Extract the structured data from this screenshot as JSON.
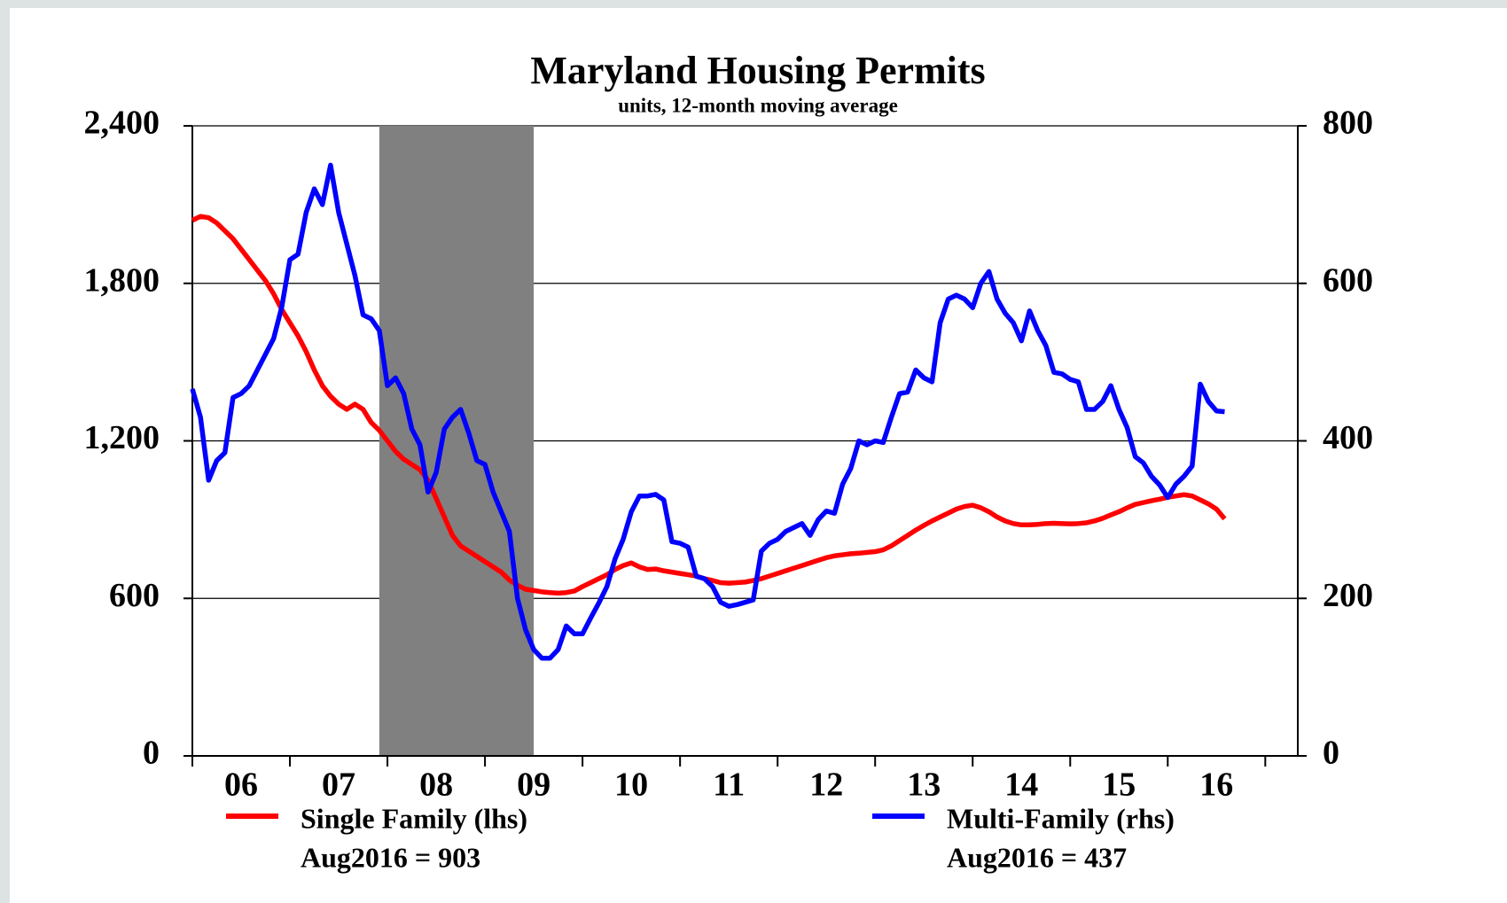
{
  "chart_data": {
    "type": "line",
    "title": "Maryland Housing Permits",
    "subtitle": "units, 12-month moving average",
    "categories": [
      null,
      null,
      null,
      null,
      null,
      null,
      "06",
      null,
      null,
      null,
      null,
      null,
      null,
      null,
      null,
      null,
      null,
      null,
      "07",
      null,
      null,
      null,
      null,
      null,
      null,
      null,
      null,
      null,
      null,
      null,
      "08",
      null,
      null,
      null,
      null,
      null,
      null,
      null,
      null,
      null,
      null,
      null,
      "09",
      null,
      null,
      null,
      null,
      null,
      null,
      null,
      null,
      null,
      null,
      null,
      "10",
      null,
      null,
      null,
      null,
      null,
      null,
      null,
      null,
      null,
      null,
      null,
      "11",
      null,
      null,
      null,
      null,
      null,
      null,
      null,
      null,
      null,
      null,
      null,
      "12",
      null,
      null,
      null,
      null,
      null,
      null,
      null,
      null,
      null,
      null,
      null,
      "13",
      null,
      null,
      null,
      null,
      null,
      null,
      null,
      null,
      null,
      null,
      null,
      "14",
      null,
      null,
      null,
      null,
      null,
      null,
      null,
      null,
      null,
      null,
      null,
      "15",
      null,
      null,
      null,
      null,
      null,
      null,
      null,
      null,
      null,
      null,
      null,
      "16",
      null,
      null,
      null,
      null,
      null,
      null,
      null,
      null,
      null
    ],
    "series": [
      {
        "name": "Single Family (lhs)",
        "annotation": "Aug2016  = 903",
        "color": "#ff0000",
        "axis": "y",
        "values": [
          2040,
          2055,
          2050,
          2030,
          2000,
          1970,
          1930,
          1890,
          1850,
          1810,
          1760,
          1700,
          1650,
          1600,
          1540,
          1470,
          1410,
          1370,
          1340,
          1320,
          1340,
          1320,
          1270,
          1240,
          1200,
          1160,
          1130,
          1110,
          1090,
          1050,
          980,
          910,
          840,
          800,
          780,
          760,
          740,
          720,
          700,
          670,
          650,
          635,
          630,
          625,
          622,
          620,
          622,
          628,
          645,
          660,
          675,
          690,
          710,
          725,
          735,
          720,
          710,
          712,
          705,
          700,
          695,
          690,
          685,
          675,
          668,
          660,
          658,
          660,
          662,
          668,
          675,
          685,
          695,
          705,
          715,
          725,
          735,
          745,
          755,
          762,
          766,
          770,
          772,
          775,
          778,
          785,
          800,
          820,
          840,
          860,
          878,
          895,
          910,
          925,
          940,
          950,
          955,
          945,
          930,
          910,
          895,
          885,
          880,
          880,
          882,
          885,
          886,
          885,
          884,
          885,
          888,
          895,
          905,
          918,
          930,
          945,
          958,
          965,
          972,
          978,
          985,
          990,
          995,
          990,
          975,
          960,
          940,
          903,
          null,
          null,
          null,
          null,
          null,
          null,
          null,
          null
        ]
      },
      {
        "name": "Multi-Family (rhs)",
        "annotation": "Aug2016  = 437",
        "color": "#0000ff",
        "axis": "y2",
        "values": [
          466,
          430,
          350,
          375,
          385,
          455,
          460,
          470,
          490,
          510,
          530,
          570,
          630,
          637,
          690,
          720,
          700,
          750,
          690,
          650,
          610,
          560,
          555,
          540,
          470,
          480,
          460,
          415,
          395,
          335,
          360,
          415,
          430,
          440,
          410,
          375,
          370,
          335,
          310,
          285,
          200,
          160,
          135,
          124,
          124,
          135,
          165,
          155,
          155,
          175,
          194,
          215,
          250,
          275,
          310,
          330,
          330,
          332,
          325,
          272,
          270,
          265,
          228,
          225,
          215,
          195,
          190,
          192,
          195,
          198,
          260,
          270,
          275,
          285,
          290,
          295,
          280,
          300,
          311,
          308,
          345,
          365,
          400,
          395,
          400,
          398,
          430,
          460,
          462,
          490,
          480,
          475,
          550,
          580,
          585,
          580,
          569,
          600,
          615,
          580,
          562,
          550,
          527,
          565,
          540,
          521,
          487,
          485,
          478,
          475,
          440,
          440,
          450,
          470,
          440,
          417,
          380,
          372,
          355,
          344,
          328,
          345,
          355,
          368,
          472,
          450,
          438,
          437,
          null,
          null,
          null,
          null,
          null,
          null,
          null,
          null
        ]
      }
    ],
    "ylim": [
      0,
      2400
    ],
    "yticks": [
      0,
      600,
      {
        "value": 1200,
        "label": "1,200"
      },
      {
        "value": 1800,
        "label": "1,800"
      },
      {
        "value": 2400,
        "label": "2,400"
      }
    ],
    "y2lim": [
      0,
      800
    ],
    "y2ticks": [
      0,
      200,
      400,
      600,
      800
    ],
    "grid": true
  }
}
